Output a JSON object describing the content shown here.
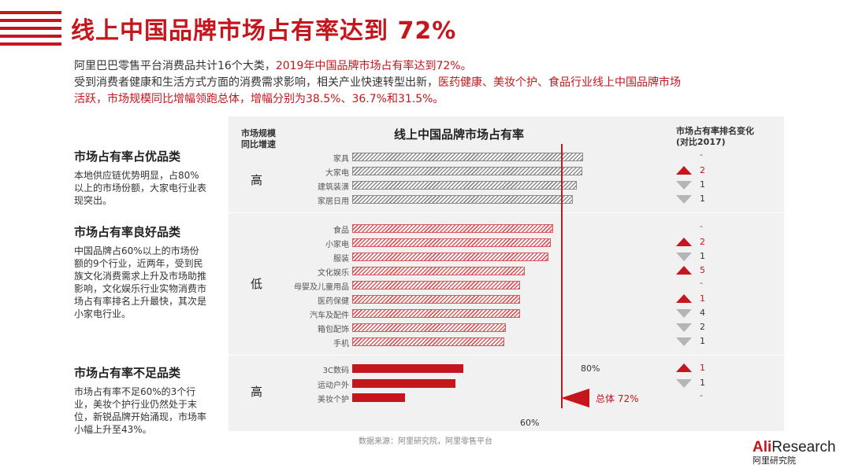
{
  "title": "线上中国品牌市场占有率达到 72%",
  "intro": {
    "line1_plain": "阿里巴巴零售平台消费品共计16个大类，",
    "line1_red": "2019年中国品牌市场占有率达到72%。",
    "line2_plain": "受到消费者健康和生活方式方面的消费需求影响，相关产业快速转型出新，",
    "line2_red": "医药健康、美妆个护、食品行业线上中国品牌市场",
    "line3_red": "活跃，",
    "line3_plain": "市场规模同比增幅领跑总体，增幅分别为38.5%、36.7%和31.5%。"
  },
  "columns": {
    "growth": "市场规模同比增速",
    "chart": "线上中国品牌市场占有率",
    "rank": "市场占有率排名变化 (对比2017)"
  },
  "groups": [
    {
      "heading": "市场占有率占优品类",
      "desc": "本地供应链优势明显，占80%以上的市场份额，大家电行业表现突出。",
      "growth": "高"
    },
    {
      "heading": "市场占有率良好品类",
      "desc": "中国品牌占60%以上的市场份额的9个行业，近两年，受到民族文化消费需求上升及市场助推影响，文化娱乐行业实物消费市场占有率排名上升最快，其次是小家电行业。",
      "growth": "低"
    },
    {
      "heading": "市场占有率不足品类",
      "desc": "市场占有率不足60%的3个行业，美妆个护行业仍然处于末位，新锐品牌开始涌现，市场率小幅上升至43%。",
      "growth": "高"
    }
  ],
  "chart_data": {
    "type": "bar",
    "orientation": "horizontal",
    "title": "线上中国品牌市场占有率",
    "categories": [
      "家具",
      "大家电",
      "建筑装潢",
      "家居日用",
      "食品",
      "小家电",
      "服装",
      "文化娱乐",
      "母婴及儿童用品",
      "医药保健",
      "汽车及配件",
      "箱包配饰",
      "手机",
      "3C数码",
      "运动户外",
      "美妆个护"
    ],
    "values": [
      87,
      86.8,
      85.5,
      84.5,
      79.5,
      79,
      78.5,
      72.5,
      71.5,
      71.5,
      71.5,
      68,
      67.5,
      57.5,
      55.5,
      43
    ],
    "group": [
      "优",
      "优",
      "优",
      "优",
      "良",
      "良",
      "良",
      "良",
      "良",
      "良",
      "良",
      "良",
      "良",
      "不足",
      "不足",
      "不足"
    ],
    "rank_change": [
      {
        "dir": "none",
        "value": "-"
      },
      {
        "dir": "up",
        "value": "2"
      },
      {
        "dir": "down",
        "value": "1"
      },
      {
        "dir": "down",
        "value": "1"
      },
      {
        "dir": "none",
        "value": "-"
      },
      {
        "dir": "up",
        "value": "2"
      },
      {
        "dir": "down",
        "value": "1"
      },
      {
        "dir": "up",
        "value": "5"
      },
      {
        "dir": "none",
        "value": "-"
      },
      {
        "dir": "up",
        "value": "1"
      },
      {
        "dir": "down",
        "value": "4"
      },
      {
        "dir": "down",
        "value": "2"
      },
      {
        "dir": "down",
        "value": "1"
      },
      {
        "dir": "up",
        "value": "1"
      },
      {
        "dir": "down",
        "value": "1"
      },
      {
        "dir": "none",
        "value": "-"
      }
    ],
    "reference_lines": [
      {
        "label": "60%",
        "value": 60
      },
      {
        "label": "80%",
        "value": 80
      }
    ],
    "total": {
      "label": "总体 72%",
      "value": 72
    },
    "xlim": [
      30,
      100
    ],
    "colors": {
      "good": "#8a8a8a",
      "medium": "#d65a5e",
      "poor": "#c4161c"
    }
  },
  "source": "数据来源：阿里研究院，阿里零售平台",
  "logo": {
    "ali": "Ali",
    "research": "Research",
    "cn": "阿里研究院"
  }
}
